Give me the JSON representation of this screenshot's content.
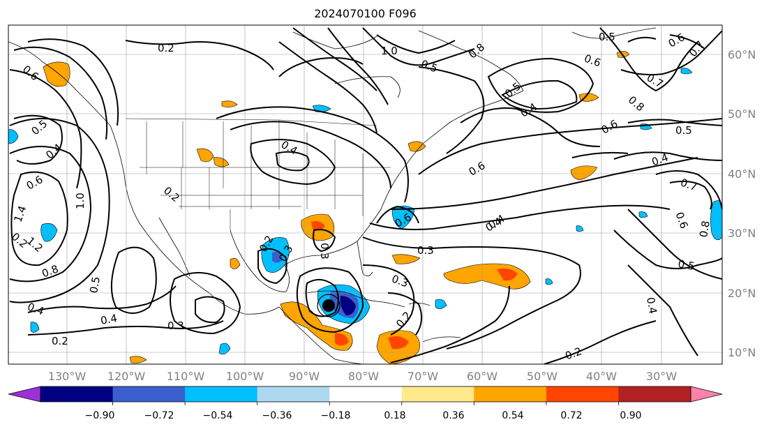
{
  "title": "2024070100 F096",
  "longitude_labels": [
    "130°W",
    "120°W",
    "110°W",
    "100°W",
    "90°W",
    "80°W",
    "70°W",
    "60°W",
    "50°W",
    "40°W",
    "30°W"
  ],
  "latitude_labels": [
    "60°N",
    "50°N",
    "40°N",
    "30°N",
    "20°N",
    "10°N"
  ],
  "colorbar": {
    "ticks": [
      "−0.90",
      "−0.72",
      "−0.54",
      "−0.36",
      "−0.18",
      "0.18",
      "0.36",
      "0.54",
      "0.72",
      "0.90"
    ],
    "colors": [
      "#9b30d9",
      "#000080",
      "#3a5fcd",
      "#00bfff",
      "#add8f0",
      "#ffffff",
      "#ffe98a",
      "#ffa500",
      "#ff4500",
      "#b22222",
      "#ff82ab"
    ]
  },
  "contour_labels": [
    "0.2",
    "0.6",
    "0.5",
    "0.4",
    "0.6",
    "1.0",
    "1.4",
    "1.2",
    "0.8",
    "0.4",
    "0.2",
    "0.4",
    "0.5",
    "0.3",
    "0.2",
    "0.2",
    "0.4",
    "0.2",
    "0.3",
    "0.6",
    "0.3",
    "0.3",
    "0.2",
    "1.0",
    "0.5",
    "0.8",
    "0.6",
    "0.5",
    "0.4",
    "0.5",
    "0.4",
    "0.7",
    "0.8",
    "0.6",
    "0.5",
    "0.4",
    "0.7",
    "0.6",
    "0.8",
    "0.5",
    "0.4",
    "0.2",
    "0.4",
    "0.6",
    "0.6",
    "0.7",
    "0.3"
  ],
  "storm_marker": "black-dot"
}
